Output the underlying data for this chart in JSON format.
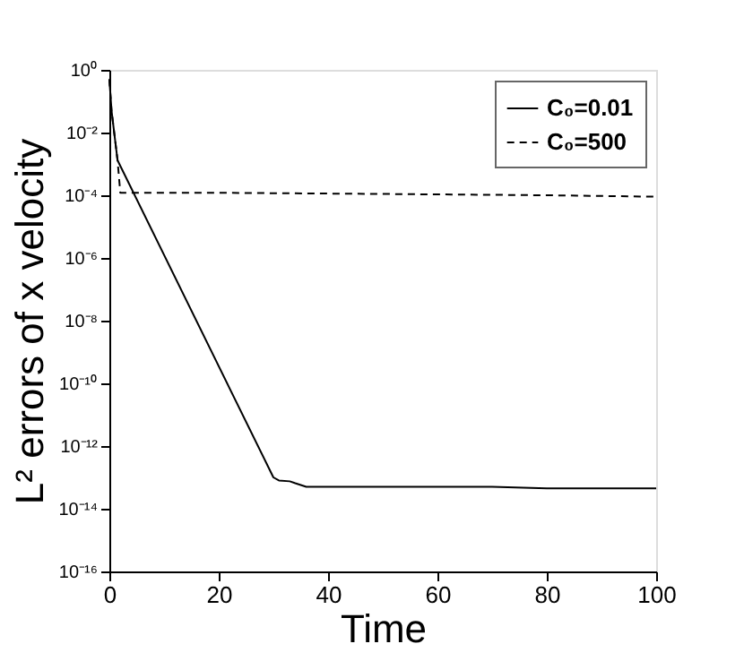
{
  "chart_data": {
    "type": "line",
    "xlabel": "Time",
    "ylabel": "L² errors of x velocity",
    "xlim": [
      0,
      100
    ],
    "xticks": [
      0,
      20,
      40,
      60,
      80,
      100
    ],
    "ylim": [
      1e-16,
      1
    ],
    "log": true,
    "yticks": [
      {
        "value": 1,
        "label": "10⁰"
      },
      {
        "value": 0.01,
        "label": "10⁻²"
      },
      {
        "value": 0.0001,
        "label": "10⁻⁴"
      },
      {
        "value": 1e-06,
        "label": "10⁻⁶"
      },
      {
        "value": 1e-08,
        "label": "10⁻⁸"
      },
      {
        "value": 1e-10,
        "label": "10⁻¹⁰"
      },
      {
        "value": 1e-12,
        "label": "10⁻¹²"
      },
      {
        "value": 1e-14,
        "label": "10⁻¹⁴"
      },
      {
        "value": 1e-16,
        "label": "10⁻¹⁶"
      }
    ],
    "grid": false,
    "legend": "top right",
    "marker": "none",
    "series": [
      {
        "name": "C₀=0.01",
        "color": "#000000",
        "line_style": "solid",
        "x": [
          0,
          0.4,
          1.5,
          30,
          31,
          33,
          34,
          36,
          50,
          70,
          80,
          90,
          100
        ],
        "values": [
          0.5,
          0.05,
          0.0013,
          1e-13,
          8e-14,
          7.5e-14,
          6.5e-14,
          5e-14,
          5e-14,
          5e-14,
          4.5e-14,
          4.5e-14,
          4.5e-14
        ]
      },
      {
        "name": "C₀=500",
        "color": "#000000",
        "line_style": "dashed",
        "x": [
          0,
          0.4,
          1.5,
          2,
          20,
          50,
          80,
          100
        ],
        "values": [
          0.5,
          0.05,
          0.0013,
          0.00012,
          0.00012,
          0.00011,
          0.0001,
          9e-05
        ]
      }
    ]
  }
}
